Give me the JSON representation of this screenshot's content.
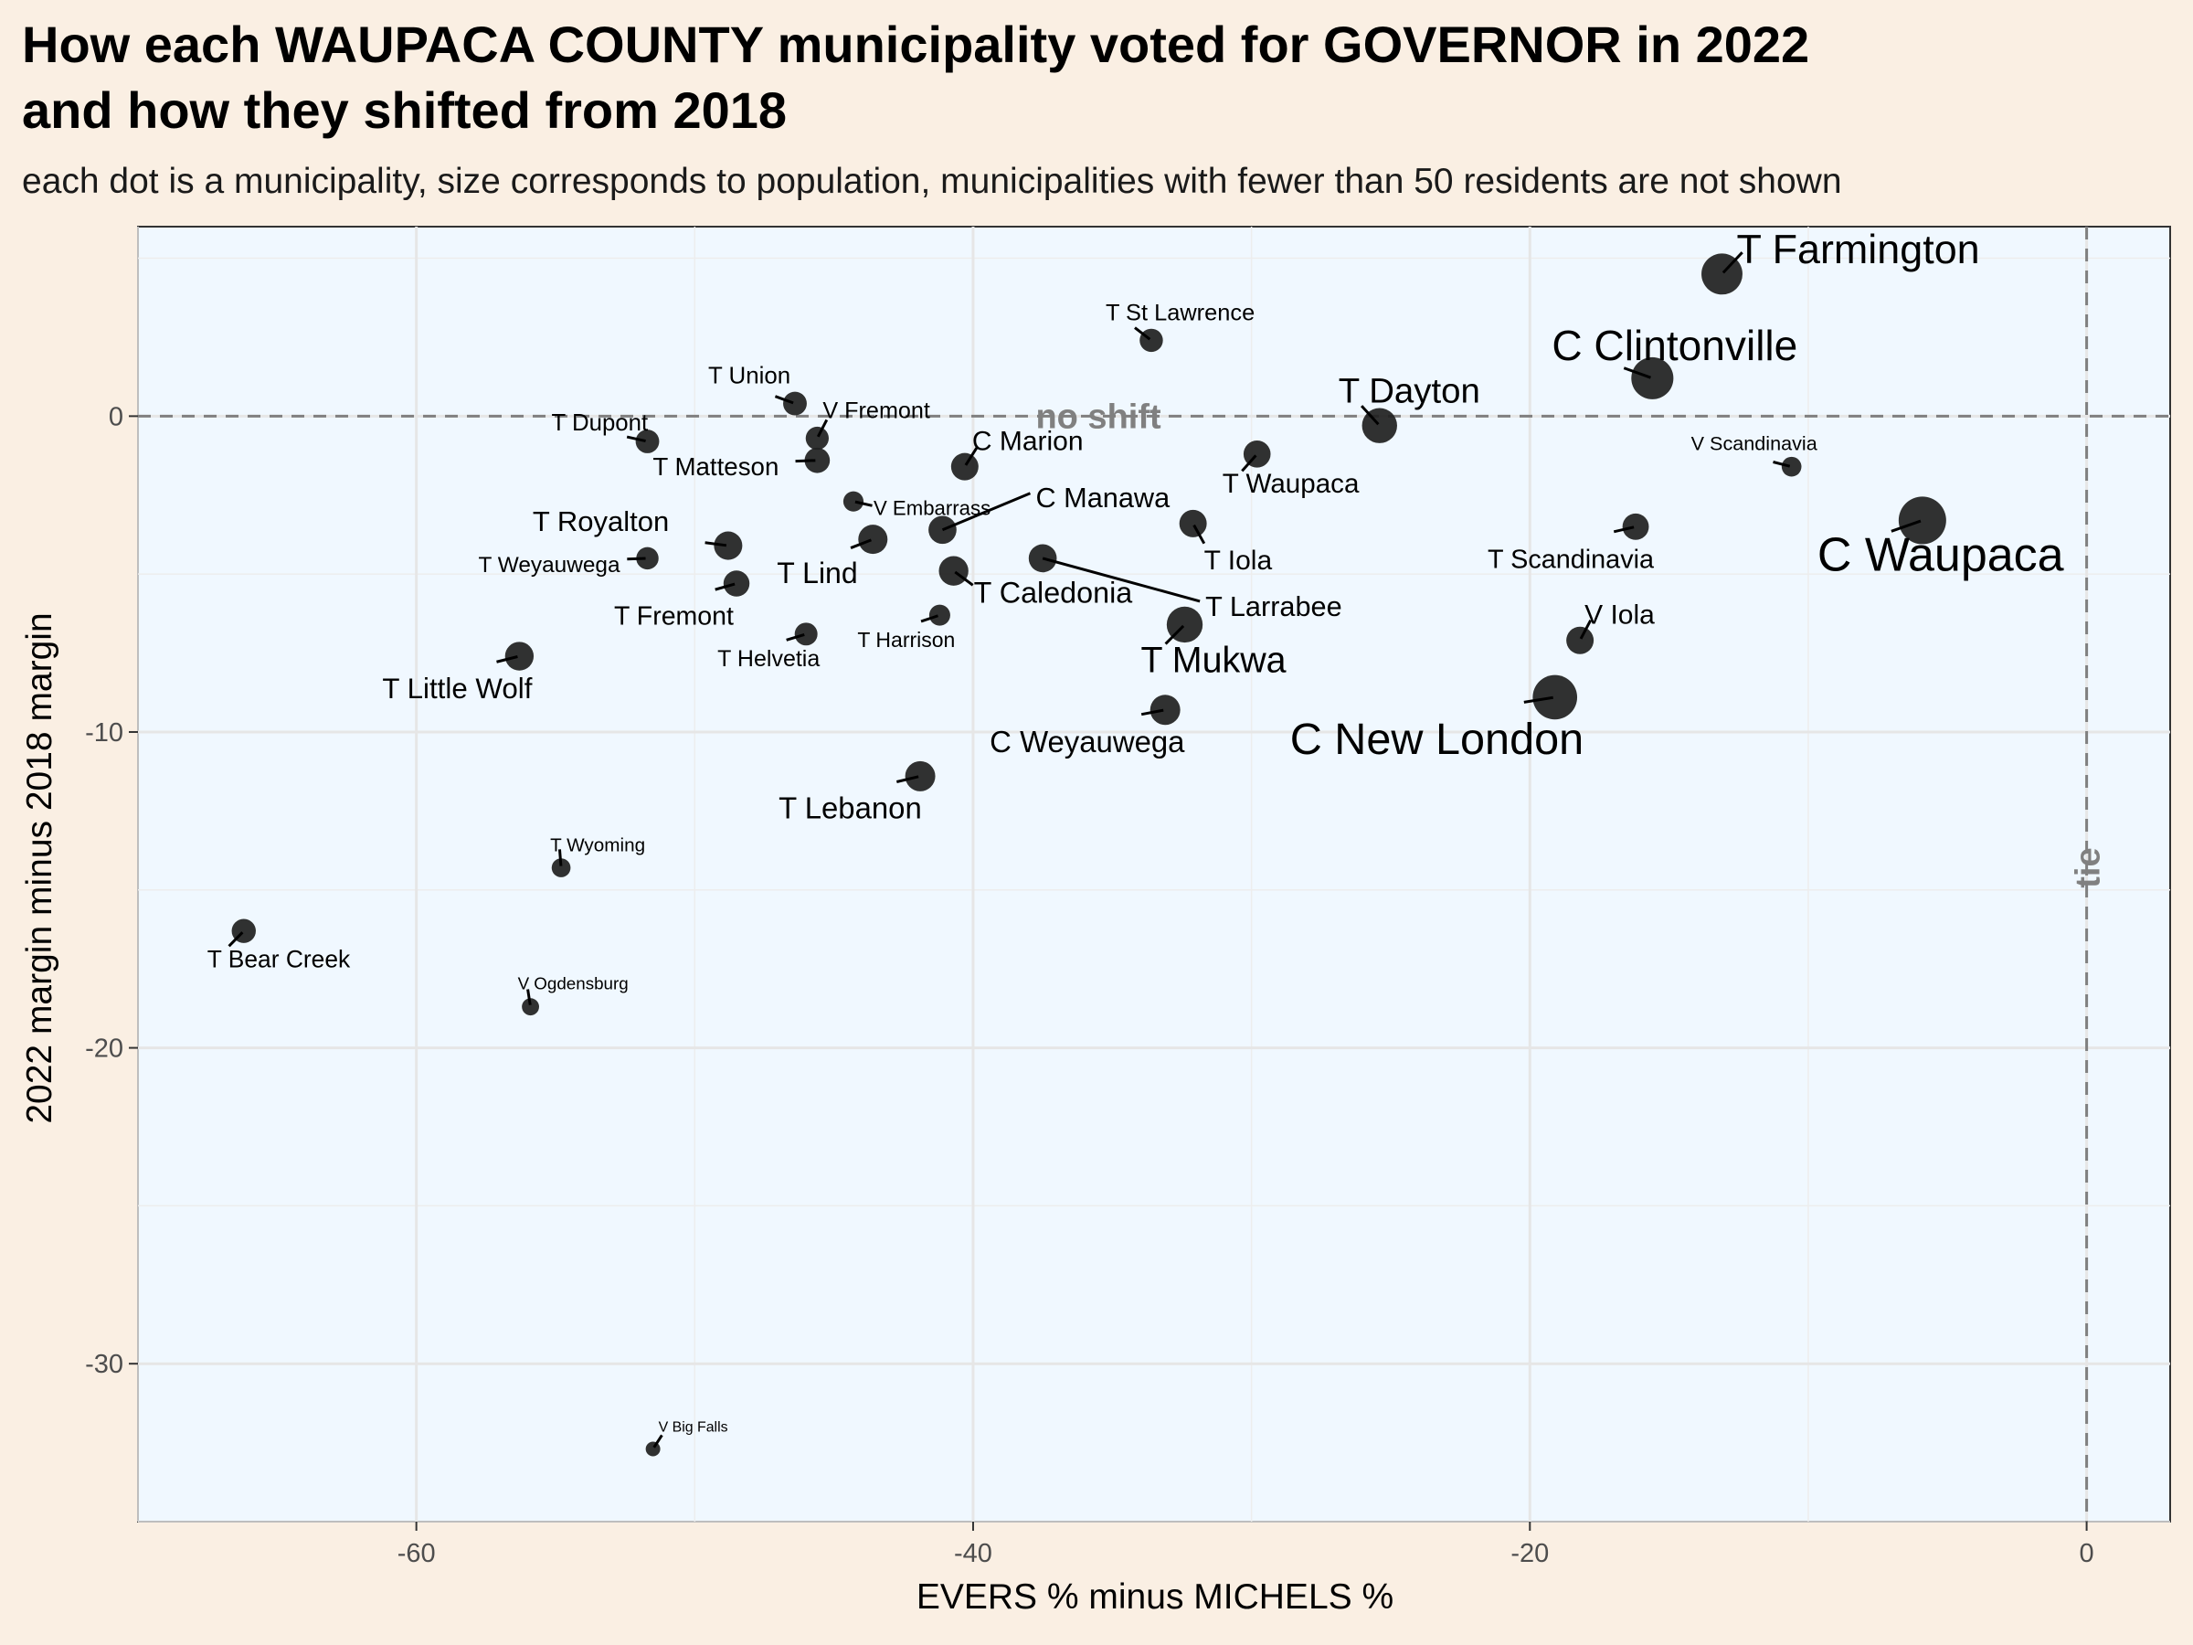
{
  "chart_data": {
    "type": "scatter",
    "title": "How each WAUPACA COUNTY municipality voted for GOVERNOR in 2022 and how they shifted from 2018",
    "title_lines": [
      "How each WAUPACA COUNTY municipality voted for GOVERNOR in 2022",
      "and how they shifted from 2018"
    ],
    "subtitle": "each dot is a municipality, size corresponds to population, municipalities with fewer than 50 residents are not shown",
    "xlabel": "EVERS % minus MICHELS %",
    "ylabel": "2022 margin minus 2018 margin",
    "xlim": [
      -70,
      3
    ],
    "ylim": [
      -35,
      6
    ],
    "x_ticks": [
      -60,
      -40,
      -20,
      0
    ],
    "y_ticks": [
      -30,
      -20,
      -10,
      0
    ],
    "grid": true,
    "reference_lines": {
      "horizontal": {
        "y": 0,
        "label": "no shift"
      },
      "vertical": {
        "x": 0,
        "label": "tie"
      }
    },
    "colors": {
      "page_background": "#FAEFE3",
      "panel_background": "#F0F8FF",
      "point": "#1F1F1F",
      "reference_line": "#808080",
      "grid": "#E6E6E6"
    },
    "points": [
      {
        "name": "T Farmington",
        "x": -13.1,
        "y": 4.5,
        "pop": 4200
      },
      {
        "name": "C Clintonville",
        "x": -15.6,
        "y": 1.2,
        "pop": 4500
      },
      {
        "name": "T Dayton",
        "x": -25.4,
        "y": -0.3,
        "pop": 2700
      },
      {
        "name": "V Scandinavia",
        "x": -10.6,
        "y": -1.6,
        "pop": 360
      },
      {
        "name": "C Waupaca",
        "x": -5.9,
        "y": -3.3,
        "pop": 6200
      },
      {
        "name": "T St Lawrence",
        "x": -33.6,
        "y": 2.4,
        "pop": 700
      },
      {
        "name": "T Union",
        "x": -46.4,
        "y": 0.4,
        "pop": 750
      },
      {
        "name": "V Fremont",
        "x": -45.6,
        "y": -0.7,
        "pop": 680
      },
      {
        "name": "T Dupont",
        "x": -51.7,
        "y": -0.8,
        "pop": 740
      },
      {
        "name": "T Matteson",
        "x": -45.6,
        "y": -1.4,
        "pop": 950
      },
      {
        "name": "C Marion",
        "x": -40.3,
        "y": -1.6,
        "pop": 1250
      },
      {
        "name": "T Waupaca",
        "x": -29.8,
        "y": -1.2,
        "pop": 1200
      },
      {
        "name": "V Embarrass",
        "x": -44.3,
        "y": -2.7,
        "pop": 400
      },
      {
        "name": "C Manawa",
        "x": -41.1,
        "y": -3.6,
        "pop": 1350
      },
      {
        "name": "T Iola",
        "x": -32.1,
        "y": -3.4,
        "pop": 1250
      },
      {
        "name": "T Scandinavia",
        "x": -16.2,
        "y": -3.5,
        "pop": 1100
      },
      {
        "name": "T Royalton",
        "x": -48.8,
        "y": -4.1,
        "pop": 1400
      },
      {
        "name": "T Weyauwega",
        "x": -51.7,
        "y": -4.5,
        "pop": 600
      },
      {
        "name": "T Lind",
        "x": -43.6,
        "y": -3.9,
        "pop": 1550
      },
      {
        "name": "T Caledonia",
        "x": -40.7,
        "y": -4.9,
        "pop": 1600
      },
      {
        "name": "T Larrabee",
        "x": -37.5,
        "y": -4.5,
        "pop": 1350
      },
      {
        "name": "T Fremont",
        "x": -48.5,
        "y": -5.3,
        "pop": 1050
      },
      {
        "name": "T Harrison",
        "x": -41.2,
        "y": -6.3,
        "pop": 470
      },
      {
        "name": "T Helvetia",
        "x": -46.0,
        "y": -6.9,
        "pop": 650
      },
      {
        "name": "T Mukwa",
        "x": -32.4,
        "y": -6.6,
        "pop": 2900
      },
      {
        "name": "V Iola",
        "x": -18.2,
        "y": -7.1,
        "pop": 1250
      },
      {
        "name": "T Little Wolf",
        "x": -56.3,
        "y": -7.6,
        "pop": 1450
      },
      {
        "name": "C New London",
        "x": -19.1,
        "y": -8.9,
        "pop": 5200
      },
      {
        "name": "C Weyauwega",
        "x": -33.1,
        "y": -9.3,
        "pop": 1700
      },
      {
        "name": "T Lebanon",
        "x": -41.9,
        "y": -11.4,
        "pop": 1700
      },
      {
        "name": "T Wyoming",
        "x": -54.8,
        "y": -14.3,
        "pop": 290
      },
      {
        "name": "T Bear Creek",
        "x": -66.2,
        "y": -16.3,
        "pop": 800
      },
      {
        "name": "V Ogdensburg",
        "x": -55.9,
        "y": -18.7,
        "pop": 180
      },
      {
        "name": "V Big Falls",
        "x": -51.5,
        "y": -32.7,
        "pop": 60
      }
    ]
  }
}
